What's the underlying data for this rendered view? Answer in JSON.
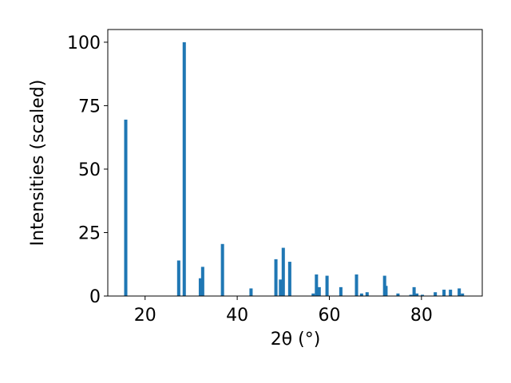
{
  "chart_data": {
    "type": "bar",
    "xlabel": "2θ (°)",
    "ylabel": "Intensities (scaled)",
    "x": [
      15.8,
      27.3,
      28.5,
      32.0,
      32.5,
      36.8,
      43.0,
      48.4,
      49.4,
      50.0,
      51.4,
      56.5,
      57.2,
      57.8,
      59.5,
      62.5,
      65.9,
      67.0,
      68.2,
      72.0,
      72.3,
      74.9,
      77.7,
      78.4,
      79.0,
      80.2,
      83.0,
      84.9,
      86.3,
      88.2,
      88.9
    ],
    "values": [
      69.5,
      14,
      100,
      7,
      11.5,
      20.5,
      3,
      14.5,
      6.5,
      19,
      13.5,
      1,
      8.5,
      3.5,
      8,
      3.5,
      8.5,
      1,
      1.5,
      8,
      4,
      1,
      0.5,
      3.5,
      1,
      0.5,
      1.5,
      2.5,
      2.5,
      3,
      1
    ],
    "color": "#1f77b4",
    "xlim": [
      11.9,
      93.2
    ],
    "ylim": [
      0,
      105
    ],
    "xticks": [
      20,
      40,
      60,
      80
    ],
    "yticks": [
      0,
      25,
      50,
      75,
      100
    ]
  }
}
